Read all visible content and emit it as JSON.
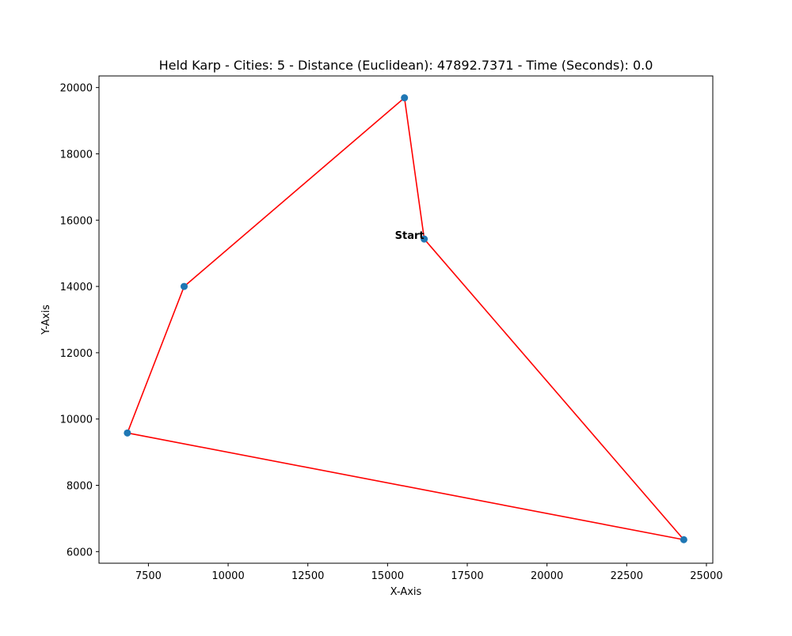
{
  "chart_data": {
    "type": "scatter",
    "title": "Held Karp - Cities: 5 - Distance (Euclidean): 47892.7371 - Time (Seconds): 0.0",
    "xlabel": "X-Axis",
    "ylabel": "Y-Axis",
    "xlim": [
      5950,
      25200
    ],
    "ylim": [
      5650,
      20350
    ],
    "xticks": [
      7500,
      10000,
      12500,
      15000,
      17500,
      20000,
      22500,
      25000
    ],
    "yticks": [
      6000,
      8000,
      10000,
      12000,
      14000,
      16000,
      18000,
      20000
    ],
    "grid": false,
    "points": [
      {
        "x": 16150,
        "y": 15430
      },
      {
        "x": 15530,
        "y": 19690
      },
      {
        "x": 8620,
        "y": 14000
      },
      {
        "x": 6840,
        "y": 9580
      },
      {
        "x": 24290,
        "y": 6360
      }
    ],
    "route": [
      0,
      1,
      2,
      3,
      4,
      0
    ],
    "start_label": "Start",
    "colors": {
      "points": "#1f77b4",
      "route": "#ff0000"
    }
  }
}
